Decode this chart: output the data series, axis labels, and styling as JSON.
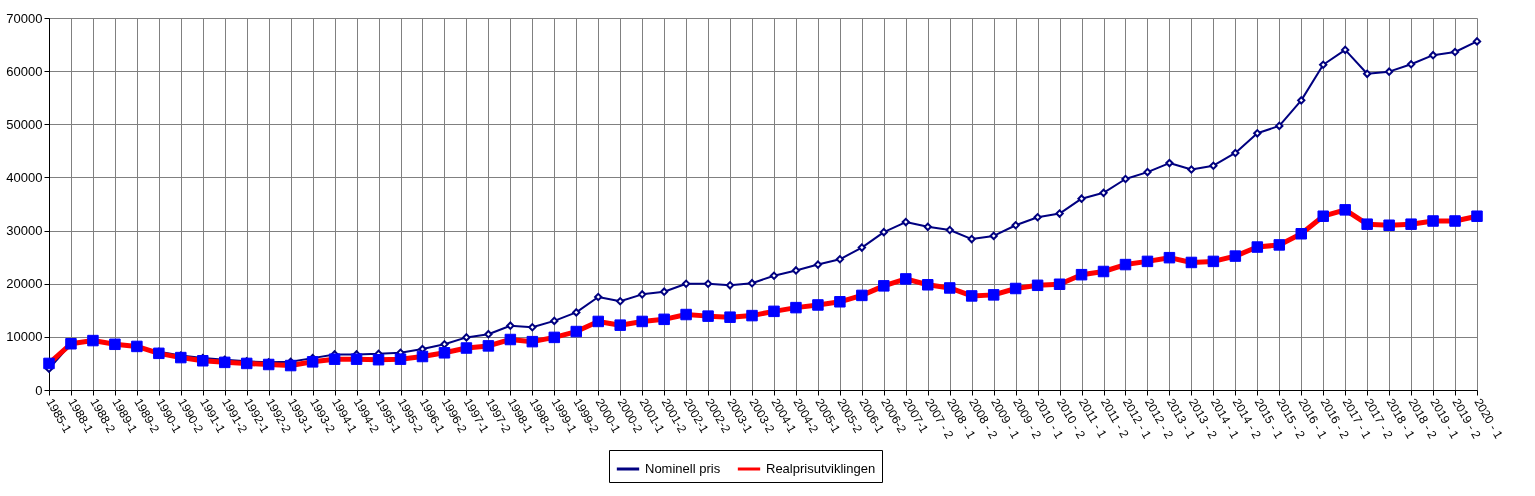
{
  "chart_data": {
    "type": "line",
    "categories": [
      "1985-1",
      "1988-1",
      "1988-2",
      "1989-1",
      "1989-2",
      "1990-1",
      "1990-2",
      "1991-1",
      "1991-2",
      "1992-1",
      "1992-2",
      "1993-1",
      "1993-2",
      "1994-1",
      "1994-2",
      "1995-1",
      "1995-2",
      "1996-1",
      "1996-2",
      "1997-1",
      "1997-2",
      "1998-1",
      "1998-2",
      "1999-1",
      "1999-2",
      "2000-1",
      "2000-2",
      "2001-1",
      "2001-2",
      "2002-1",
      "2002-2",
      "2003-1",
      "2003-2",
      "2004-1",
      "2004-2",
      "2005-1",
      "2005-2",
      "2006-1",
      "2006-2",
      "2007-1",
      "2007 - 2",
      "2008 - 1",
      "2008 - 2",
      "2009 - 1",
      "2009 - 2",
      "2010 - 1",
      "2010 - 2",
      "2011 - 1",
      "2011 - 2",
      "2012 - 1",
      "2012 - 2",
      "2013 - 1",
      "2013 - 2",
      "2014 - 1",
      "2014 - 2",
      "2015 - 1",
      "2015 - 2",
      "2016 - 1",
      "2016 - 2",
      "2017 - 1",
      "2017 - 2",
      "2018 - 1",
      "2018 - 2",
      "2019 - 1",
      "2019 - 2",
      "2020 - 1"
    ],
    "series": [
      {
        "name": "Nominell pris",
        "color": "#000080",
        "marker": "diamond",
        "values": [
          4000,
          8700,
          9300,
          8500,
          8200,
          7200,
          6500,
          6000,
          5700,
          5400,
          5200,
          5300,
          6000,
          6700,
          6700,
          6800,
          7000,
          7700,
          8600,
          9900,
          10500,
          12100,
          11800,
          13000,
          14600,
          17500,
          16700,
          18000,
          18500,
          20000,
          20000,
          19700,
          20100,
          21500,
          22500,
          23600,
          24600,
          26800,
          29700,
          31600,
          30700,
          30100,
          28400,
          29000,
          31000,
          32500,
          33200,
          36000,
          37100,
          39700,
          41000,
          42700,
          41500,
          42200,
          44600,
          48300,
          49700,
          54500,
          61200,
          64000,
          59500,
          59900,
          61300,
          63000,
          63600,
          65600
        ]
      },
      {
        "name": "Realprisutviklingen",
        "color": "#ff0000",
        "marker": "square",
        "values": [
          5000,
          8700,
          9300,
          8600,
          8200,
          6900,
          6100,
          5500,
          5200,
          5000,
          4800,
          4600,
          5300,
          5800,
          5800,
          5700,
          5800,
          6300,
          7000,
          7900,
          8300,
          9500,
          9100,
          9900,
          11000,
          12900,
          12200,
          12900,
          13300,
          14200,
          13900,
          13700,
          14000,
          14800,
          15500,
          16000,
          16600,
          17800,
          19600,
          20900,
          19800,
          19200,
          17700,
          17900,
          19100,
          19700,
          19900,
          21700,
          22300,
          23600,
          24200,
          24900,
          24000,
          24200,
          25200,
          26900,
          27300,
          29400,
          32700,
          33900,
          31200,
          31000,
          31200,
          31800,
          31800,
          32700
        ]
      }
    ],
    "ylim": [
      0,
      70000
    ],
    "yticks": [
      0,
      10000,
      20000,
      30000,
      40000,
      50000,
      60000,
      70000
    ],
    "grid": true,
    "legend": "bottom"
  }
}
